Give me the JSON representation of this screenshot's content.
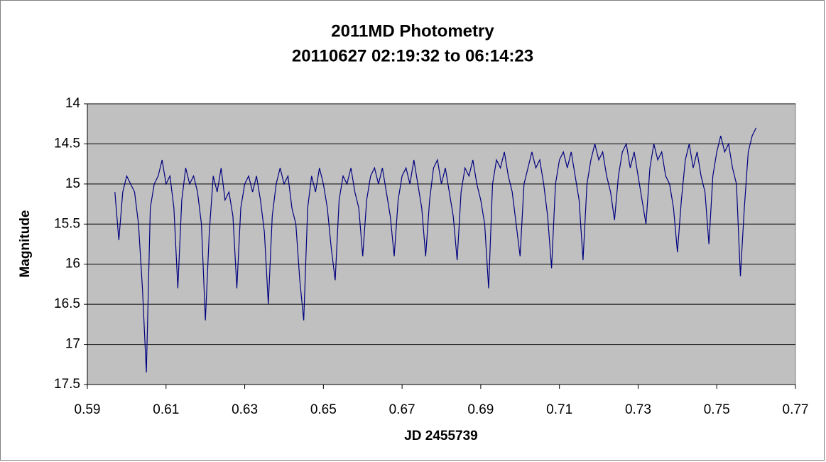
{
  "chart_data": {
    "type": "line",
    "title": "2011MD Photometry",
    "subtitle": "20110627 02:19:32 to 06:14:23",
    "x_label": "JD 2455739",
    "y_label": "Magnitude",
    "xlim": [
      0.59,
      0.77
    ],
    "xticks": [
      0.59,
      0.61,
      0.63,
      0.65,
      0.67,
      0.69,
      0.71,
      0.73,
      0.75,
      0.77
    ],
    "ylim": [
      14,
      17.5
    ],
    "yticks": [
      14,
      14.5,
      15,
      15.5,
      16,
      16.5,
      17,
      17.5
    ],
    "y_inverted": true,
    "grid": true,
    "x": [
      0.597,
      0.598,
      0.599,
      0.6,
      0.601,
      0.602,
      0.603,
      0.604,
      0.605,
      0.606,
      0.607,
      0.608,
      0.609,
      0.61,
      0.611,
      0.612,
      0.613,
      0.614,
      0.615,
      0.616,
      0.617,
      0.618,
      0.619,
      0.62,
      0.621,
      0.622,
      0.623,
      0.624,
      0.625,
      0.626,
      0.627,
      0.628,
      0.629,
      0.63,
      0.631,
      0.632,
      0.633,
      0.634,
      0.635,
      0.636,
      0.637,
      0.638,
      0.639,
      0.64,
      0.641,
      0.642,
      0.643,
      0.644,
      0.645,
      0.646,
      0.647,
      0.648,
      0.649,
      0.65,
      0.651,
      0.652,
      0.653,
      0.654,
      0.655,
      0.656,
      0.657,
      0.658,
      0.659,
      0.66,
      0.661,
      0.662,
      0.663,
      0.664,
      0.665,
      0.666,
      0.667,
      0.668,
      0.669,
      0.67,
      0.671,
      0.672,
      0.673,
      0.674,
      0.675,
      0.676,
      0.677,
      0.678,
      0.679,
      0.68,
      0.681,
      0.682,
      0.683,
      0.684,
      0.685,
      0.686,
      0.687,
      0.688,
      0.689,
      0.69,
      0.691,
      0.692,
      0.693,
      0.694,
      0.695,
      0.696,
      0.697,
      0.698,
      0.699,
      0.7,
      0.701,
      0.702,
      0.703,
      0.704,
      0.705,
      0.706,
      0.707,
      0.708,
      0.709,
      0.71,
      0.711,
      0.712,
      0.713,
      0.714,
      0.715,
      0.716,
      0.717,
      0.718,
      0.719,
      0.72,
      0.721,
      0.722,
      0.723,
      0.724,
      0.725,
      0.726,
      0.727,
      0.728,
      0.729,
      0.73,
      0.731,
      0.732,
      0.733,
      0.734,
      0.735,
      0.736,
      0.737,
      0.738,
      0.739,
      0.74,
      0.741,
      0.742,
      0.743,
      0.744,
      0.745,
      0.746,
      0.747,
      0.748,
      0.749,
      0.75,
      0.751,
      0.752,
      0.753,
      0.754,
      0.755,
      0.756,
      0.757,
      0.758,
      0.759,
      0.76
    ],
    "series": [
      {
        "name": "2011MD",
        "color": "#000080",
        "values": [
          15.1,
          15.7,
          15.1,
          14.9,
          15.0,
          15.1,
          15.5,
          16.3,
          17.35,
          15.3,
          15.0,
          14.9,
          14.7,
          15.0,
          14.9,
          15.3,
          16.3,
          15.2,
          14.8,
          15.0,
          14.9,
          15.1,
          15.5,
          16.7,
          15.6,
          14.9,
          15.1,
          14.8,
          15.2,
          15.1,
          15.4,
          16.3,
          15.3,
          15.0,
          14.9,
          15.1,
          14.9,
          15.2,
          15.6,
          16.5,
          15.4,
          15.0,
          14.8,
          15.0,
          14.9,
          15.3,
          15.5,
          16.2,
          16.7,
          15.3,
          14.9,
          15.1,
          14.8,
          15.0,
          15.3,
          15.8,
          16.2,
          15.2,
          14.9,
          15.0,
          14.8,
          15.1,
          15.3,
          15.9,
          15.2,
          14.9,
          14.8,
          15.0,
          14.8,
          15.1,
          15.4,
          15.9,
          15.2,
          14.9,
          14.8,
          15.0,
          14.7,
          15.0,
          15.3,
          15.9,
          15.2,
          14.8,
          14.7,
          15.0,
          14.8,
          15.1,
          15.4,
          15.95,
          15.1,
          14.8,
          14.9,
          14.7,
          15.0,
          15.2,
          15.5,
          16.3,
          15.0,
          14.7,
          14.8,
          14.6,
          14.9,
          15.1,
          15.5,
          15.9,
          15.0,
          14.8,
          14.6,
          14.8,
          14.7,
          15.0,
          15.4,
          16.05,
          15.0,
          14.7,
          14.6,
          14.8,
          14.6,
          14.9,
          15.2,
          15.95,
          15.0,
          14.7,
          14.5,
          14.7,
          14.6,
          14.9,
          15.1,
          15.45,
          14.9,
          14.6,
          14.5,
          14.8,
          14.6,
          14.9,
          15.2,
          15.5,
          14.8,
          14.5,
          14.7,
          14.6,
          14.9,
          15.0,
          15.3,
          15.85,
          15.2,
          14.7,
          14.5,
          14.8,
          14.6,
          14.9,
          15.1,
          15.75,
          14.9,
          14.6,
          14.4,
          14.6,
          14.5,
          14.8,
          15.0,
          16.15,
          15.3,
          14.6,
          14.4,
          14.3
        ]
      }
    ]
  }
}
